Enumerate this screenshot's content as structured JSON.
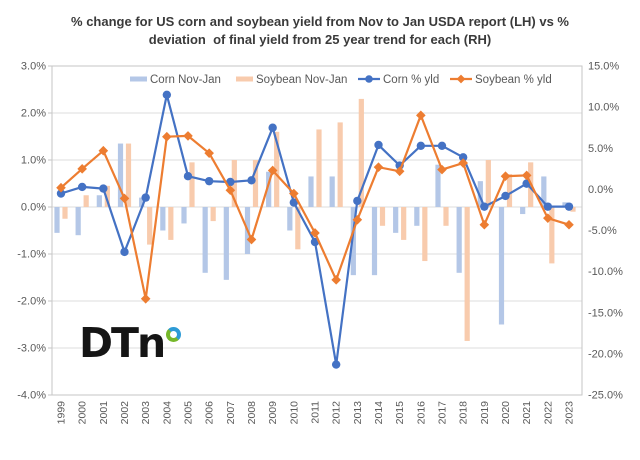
{
  "title": {
    "line1": "% change for US corn and soybean yield from Nov to Jan USDA report (LH) vs %",
    "line2": "deviation  of final yield from 25 year trend for each (RH)"
  },
  "logo": {
    "text": "DTn"
  },
  "colors": {
    "corn_bar": "#B4C7E7",
    "soybean_bar": "#F8CBAD",
    "corn_line": "#4472C4",
    "soybean_line": "#ED7D31",
    "grid": "#DCDCDC",
    "border": "#C6C6C6",
    "axis_text": "#595959",
    "title_text": "#3A3A3A"
  },
  "chart_data": {
    "type": "bar+line combo",
    "title": "% change for US corn and soybean yield from Nov to Jan USDA report (LH) vs % deviation of final yield from 25 year trend for each (RH)",
    "categories": [
      "1999",
      "2000",
      "2001",
      "2002",
      "2003",
      "2004",
      "2005",
      "2006",
      "2007",
      "2008",
      "2009",
      "2010",
      "2011",
      "2012",
      "2013",
      "2014",
      "2015",
      "2016",
      "2017",
      "2018",
      "2019",
      "2020",
      "2021",
      "2022",
      "2023"
    ],
    "series": [
      {
        "name": "Corn Nov-Jan",
        "type": "bar",
        "axis": "left",
        "color": "#B4C7E7",
        "values": [
          -0.55,
          -0.6,
          0.25,
          1.35,
          0.2,
          -0.5,
          -0.35,
          -1.4,
          -1.55,
          -1.0,
          0.75,
          -0.5,
          0.65,
          0.65,
          -1.45,
          -1.45,
          -0.55,
          -0.4,
          0.9,
          -1.4,
          0.55,
          -2.5,
          -0.15,
          0.65,
          0.1
        ]
      },
      {
        "name": "Soybean Nov-Jan",
        "type": "bar",
        "axis": "left",
        "color": "#F8CBAD",
        "values": [
          -0.25,
          0.25,
          0.45,
          1.35,
          -0.8,
          -0.7,
          0.95,
          -0.3,
          1.0,
          1.0,
          1.6,
          -0.9,
          1.65,
          1.8,
          2.3,
          -0.4,
          -0.7,
          -1.15,
          -0.4,
          -2.85,
          1.0,
          0.7,
          0.95,
          -1.2,
          -0.1
        ]
      },
      {
        "name": "Corn % yld",
        "type": "line",
        "marker": "circle",
        "axis": "right",
        "color": "#4472C4",
        "values": [
          -0.5,
          0.3,
          0.1,
          -7.6,
          -1.0,
          11.5,
          1.6,
          1.0,
          0.9,
          1.1,
          7.5,
          -1.6,
          -6.4,
          -21.3,
          -1.4,
          5.4,
          2.9,
          5.3,
          5.3,
          3.9,
          -2.1,
          -0.8,
          0.7,
          -2.1,
          -2.1
        ]
      },
      {
        "name": "Soybean % yld",
        "type": "line",
        "marker": "diamond",
        "axis": "right",
        "color": "#ED7D31",
        "values": [
          0.2,
          2.5,
          4.7,
          -1.1,
          -13.3,
          6.4,
          6.5,
          4.4,
          -0.1,
          -6.1,
          2.3,
          -0.5,
          -5.3,
          -11.0,
          -3.7,
          2.7,
          2.2,
          9.0,
          2.4,
          3.2,
          -4.3,
          1.6,
          1.7,
          -3.5,
          -4.3
        ]
      }
    ],
    "left_axis": {
      "max": 3,
      "min": -4,
      "tick_values": [
        3,
        2,
        1,
        0,
        -1,
        -2,
        -3,
        -4
      ],
      "ticks": [
        "3.0%",
        "2.0%",
        "1.0%",
        "0.0%",
        "-1.0%",
        "-2.0%",
        "-3.0%",
        "-4.0%"
      ]
    },
    "right_axis": {
      "max": 15,
      "min": -25,
      "tick_values": [
        15,
        10,
        5,
        0,
        -5,
        -10,
        -15,
        -20,
        -25
      ],
      "ticks": [
        "15.0%",
        "10.0%",
        "5.0%",
        "0.0%",
        "-5.0%",
        "-10.0%",
        "-15.0%",
        "-20.0%",
        "-25.0%"
      ]
    },
    "legend_position": "top-inside",
    "grid": "horizontal"
  }
}
